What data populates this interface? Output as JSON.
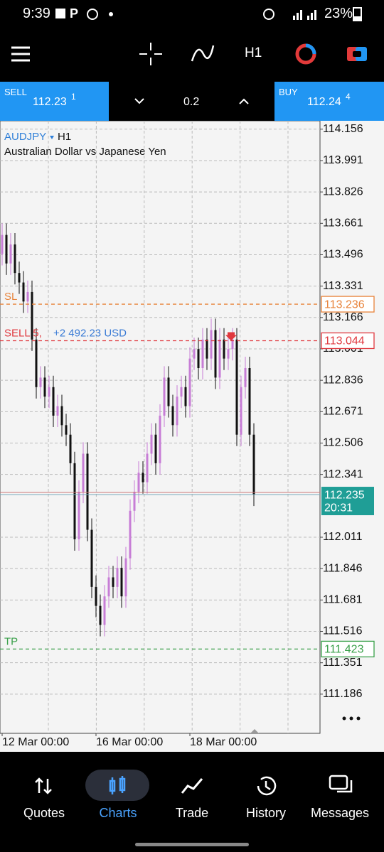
{
  "status_bar": {
    "time": "9:39",
    "battery": "23%"
  },
  "toolbar": {
    "timeframe": "H1"
  },
  "trade_panel": {
    "sell_label": "SELL",
    "sell_price": "112.23",
    "sell_pip": "1",
    "volume": "0.2",
    "buy_label": "BUY",
    "buy_price": "112.24",
    "buy_pip": "4"
  },
  "chart_data": {
    "type": "candlestick",
    "symbol": "AUDJPY",
    "timeframe": "H1",
    "description": "Australian Dollar vs Japanese Yen",
    "open": [
      113.5,
      113.6,
      113.45,
      113.55,
      113.4,
      113.35,
      113.25,
      113.3,
      113.05,
      112.8,
      112.85,
      112.75,
      112.8,
      112.65,
      112.7,
      112.6,
      112.55,
      112.4,
      112.0,
      112.25,
      112.45,
      112.05,
      111.75,
      111.65,
      111.55,
      111.7,
      111.8,
      111.75,
      111.85,
      111.7,
      111.9,
      112.15,
      112.25,
      112.35,
      112.3,
      112.45,
      112.55,
      112.4,
      112.65,
      112.85,
      112.7,
      112.6,
      112.75,
      112.8,
      112.7,
      112.95,
      113.0,
      112.9,
      113.05,
      112.95,
      113.1,
      112.85,
      113.05,
      112.95,
      113.0,
      113.05,
      112.55,
      112.8,
      112.9,
      112.55
    ],
    "high": [
      113.66,
      113.66,
      113.61,
      113.61,
      113.46,
      113.41,
      113.36,
      113.36,
      113.11,
      112.91,
      112.91,
      112.86,
      112.86,
      112.76,
      112.76,
      112.66,
      112.61,
      112.46,
      112.31,
      112.51,
      112.51,
      112.11,
      111.81,
      111.71,
      111.76,
      111.86,
      111.86,
      111.91,
      111.91,
      111.96,
      112.21,
      112.31,
      112.41,
      112.41,
      112.51,
      112.61,
      112.61,
      112.71,
      112.91,
      112.91,
      112.76,
      112.81,
      112.86,
      112.86,
      113.01,
      113.06,
      113.06,
      113.11,
      113.11,
      113.16,
      113.16,
      113.11,
      113.11,
      113.06,
      113.11,
      113.11,
      112.86,
      112.96,
      112.96,
      112.61
    ],
    "low": [
      113.44,
      113.39,
      113.39,
      113.34,
      113.29,
      113.19,
      113.19,
      112.99,
      112.74,
      112.74,
      112.69,
      112.69,
      112.59,
      112.59,
      112.54,
      112.49,
      112.34,
      111.94,
      111.94,
      112.19,
      111.99,
      111.69,
      111.59,
      111.49,
      111.49,
      111.64,
      111.69,
      111.69,
      111.64,
      111.64,
      111.84,
      112.09,
      112.19,
      112.24,
      112.24,
      112.39,
      112.34,
      112.34,
      112.59,
      112.64,
      112.54,
      112.54,
      112.69,
      112.64,
      112.64,
      112.89,
      112.84,
      112.84,
      112.89,
      112.89,
      112.79,
      112.79,
      112.89,
      112.89,
      112.94,
      112.49,
      112.49,
      112.74,
      112.49,
      112.175
    ],
    "close": [
      113.6,
      113.45,
      113.55,
      113.4,
      113.35,
      113.25,
      113.3,
      113.05,
      112.8,
      112.85,
      112.75,
      112.8,
      112.65,
      112.7,
      112.6,
      112.55,
      112.4,
      112.0,
      112.25,
      112.45,
      112.05,
      111.75,
      111.65,
      111.55,
      111.7,
      111.8,
      111.75,
      111.85,
      111.7,
      111.9,
      112.15,
      112.25,
      112.35,
      112.3,
      112.45,
      112.55,
      112.4,
      112.65,
      112.85,
      112.7,
      112.6,
      112.75,
      112.8,
      112.7,
      112.95,
      113.0,
      112.9,
      113.05,
      112.95,
      113.1,
      112.85,
      113.05,
      112.95,
      113.0,
      113.05,
      112.55,
      112.8,
      112.9,
      112.55,
      112.235
    ],
    "up_color": "#c77dd6",
    "down_color": "#111111",
    "ylim": [
      110.98,
      114.2
    ],
    "yticks": [
      114.156,
      113.991,
      113.826,
      113.661,
      113.496,
      113.331,
      113.166,
      113.001,
      112.836,
      112.671,
      112.506,
      112.341,
      112.011,
      111.846,
      111.681,
      111.516,
      111.351,
      111.186
    ],
    "grid": true,
    "xtick_labels": [
      "12 Mar 00:00",
      "16 Mar 00:00",
      "18 Mar 00:00"
    ],
    "levels": [
      {
        "label": "SL",
        "value": 113.236,
        "color": "#e8833a"
      },
      {
        "label": "SELL 5,",
        "profit": "+2 492.23 USD",
        "value": 113.044,
        "color": "#e0383e"
      },
      {
        "label": "TP",
        "value": 111.423,
        "color": "#3aa04a"
      }
    ],
    "current": {
      "value": 112.235,
      "timer": "20:31",
      "color": "#1f9e96"
    }
  },
  "nav": {
    "items": [
      "Quotes",
      "Charts",
      "Trade",
      "History",
      "Messages"
    ]
  }
}
